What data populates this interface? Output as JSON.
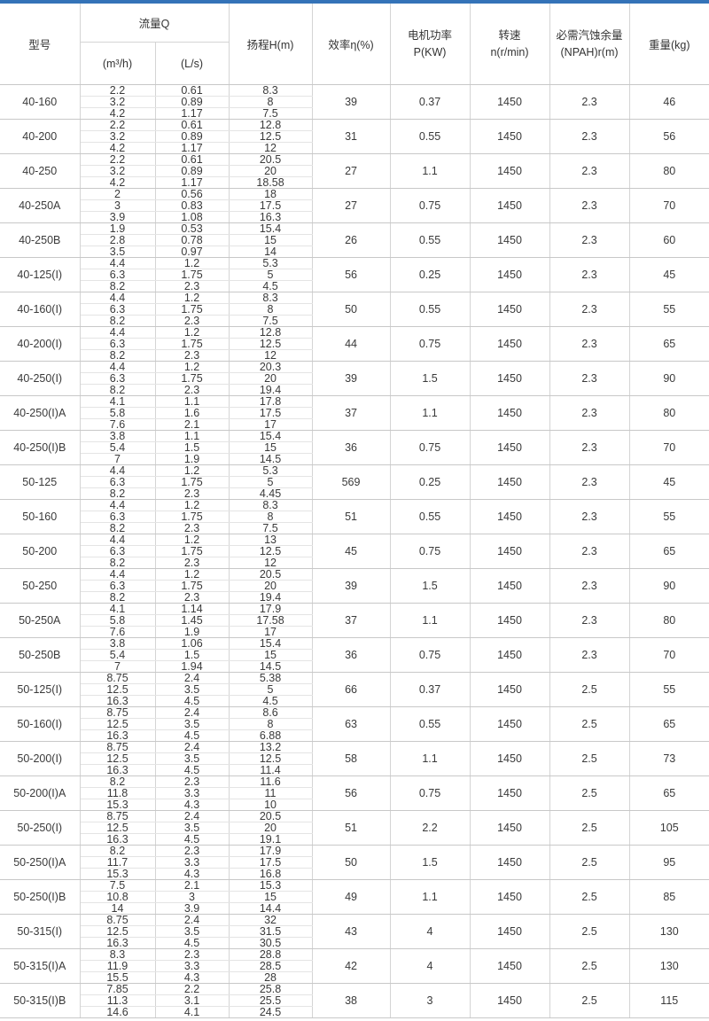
{
  "page": {
    "accent_bar_color": "#3473b8",
    "background_color": "#ffffff"
  },
  "table": {
    "headers": {
      "model": "型号",
      "flow_group": "流量Q",
      "flow_m3h": "(m³/h)",
      "flow_ls": "(L/s)",
      "head": "扬程H(m)",
      "efficiency": "效率η(%)",
      "power_line1": "电机功率",
      "power_line2": "P(KW)",
      "speed_line1": "转速",
      "speed_line2": "n(r/min)",
      "npsh_line1": "必需汽蚀余量",
      "npsh_line2": "(NPAH)r(m)",
      "weight": "重量(kg)"
    },
    "rows": [
      {
        "model": "40-160",
        "sub_rows": [
          [
            "2.2",
            "0.61",
            "8.3"
          ],
          [
            "3.2",
            "0.89",
            "8"
          ],
          [
            "4.2",
            "1.17",
            "7.5"
          ]
        ],
        "efficiency": "39",
        "power": "0.37",
        "speed": "1450",
        "npsh": "2.3",
        "weight": "46"
      },
      {
        "model": "40-200",
        "sub_rows": [
          [
            "2.2",
            "0.61",
            "12.8"
          ],
          [
            "3.2",
            "0.89",
            "12.5"
          ],
          [
            "4.2",
            "1.17",
            "12"
          ]
        ],
        "efficiency": "31",
        "power": "0.55",
        "speed": "1450",
        "npsh": "2.3",
        "weight": "56"
      },
      {
        "model": "40-250",
        "sub_rows": [
          [
            "2.2",
            "0.61",
            "20.5"
          ],
          [
            "3.2",
            "0.89",
            "20"
          ],
          [
            "4.2",
            "1.17",
            "18.58"
          ]
        ],
        "efficiency": "27",
        "power": "1.1",
        "speed": "1450",
        "npsh": "2.3",
        "weight": "80"
      },
      {
        "model": "40-250A",
        "sub_rows": [
          [
            "2",
            "0.56",
            "18"
          ],
          [
            "3",
            "0.83",
            "17.5"
          ],
          [
            "3.9",
            "1.08",
            "16.3"
          ]
        ],
        "efficiency": "27",
        "power": "0.75",
        "speed": "1450",
        "npsh": "2.3",
        "weight": "70"
      },
      {
        "model": "40-250B",
        "sub_rows": [
          [
            "1.9",
            "0.53",
            "15.4"
          ],
          [
            "2.8",
            "0.78",
            "15"
          ],
          [
            "3.5",
            "0.97",
            "14"
          ]
        ],
        "efficiency": "26",
        "power": "0.55",
        "speed": "1450",
        "npsh": "2.3",
        "weight": "60"
      },
      {
        "model": "40-125(I)",
        "sub_rows": [
          [
            "4.4",
            "1.2",
            "5.3"
          ],
          [
            "6.3",
            "1.75",
            "5"
          ],
          [
            "8.2",
            "2.3",
            "4.5"
          ]
        ],
        "efficiency": "56",
        "power": "0.25",
        "speed": "1450",
        "npsh": "2.3",
        "weight": "45"
      },
      {
        "model": "40-160(I)",
        "sub_rows": [
          [
            "4.4",
            "1.2",
            "8.3"
          ],
          [
            "6.3",
            "1.75",
            "8"
          ],
          [
            "8.2",
            "2.3",
            "7.5"
          ]
        ],
        "efficiency": "50",
        "power": "0.55",
        "speed": "1450",
        "npsh": "2.3",
        "weight": "55"
      },
      {
        "model": "40-200(I)",
        "sub_rows": [
          [
            "4.4",
            "1.2",
            "12.8"
          ],
          [
            "6.3",
            "1.75",
            "12.5"
          ],
          [
            "8.2",
            "2.3",
            "12"
          ]
        ],
        "efficiency": "44",
        "power": "0.75",
        "speed": "1450",
        "npsh": "2.3",
        "weight": "65"
      },
      {
        "model": "40-250(I)",
        "sub_rows": [
          [
            "4.4",
            "1.2",
            "20.3"
          ],
          [
            "6.3",
            "1.75",
            "20"
          ],
          [
            "8.2",
            "2.3",
            "19.4"
          ]
        ],
        "efficiency": "39",
        "power": "1.5",
        "speed": "1450",
        "npsh": "2.3",
        "weight": "90"
      },
      {
        "model": "40-250(I)A",
        "sub_rows": [
          [
            "4.1",
            "1.1",
            "17.8"
          ],
          [
            "5.8",
            "1.6",
            "17.5"
          ],
          [
            "7.6",
            "2.1",
            "17"
          ]
        ],
        "efficiency": "37",
        "power": "1.1",
        "speed": "1450",
        "npsh": "2.3",
        "weight": "80"
      },
      {
        "model": "40-250(I)B",
        "sub_rows": [
          [
            "3.8",
            "1.1",
            "15.4"
          ],
          [
            "5.4",
            "1.5",
            "15"
          ],
          [
            "7",
            "1.9",
            "14.5"
          ]
        ],
        "efficiency": "36",
        "power": "0.75",
        "speed": "1450",
        "npsh": "2.3",
        "weight": "70"
      },
      {
        "model": "50-125",
        "sub_rows": [
          [
            "4.4",
            "1.2",
            "5.3"
          ],
          [
            "6.3",
            "1.75",
            "5"
          ],
          [
            "8.2",
            "2.3",
            "4.45"
          ]
        ],
        "efficiency": "569",
        "power": "0.25",
        "speed": "1450",
        "npsh": "2.3",
        "weight": "45"
      },
      {
        "model": "50-160",
        "sub_rows": [
          [
            "4.4",
            "1.2",
            "8.3"
          ],
          [
            "6.3",
            "1.75",
            "8"
          ],
          [
            "8.2",
            "2.3",
            "7.5"
          ]
        ],
        "efficiency": "51",
        "power": "0.55",
        "speed": "1450",
        "npsh": "2.3",
        "weight": "55"
      },
      {
        "model": "50-200",
        "sub_rows": [
          [
            "4.4",
            "1.2",
            "13"
          ],
          [
            "6.3",
            "1.75",
            "12.5"
          ],
          [
            "8.2",
            "2.3",
            "12"
          ]
        ],
        "efficiency": "45",
        "power": "0.75",
        "speed": "1450",
        "npsh": "2.3",
        "weight": "65"
      },
      {
        "model": "50-250",
        "sub_rows": [
          [
            "4.4",
            "1.2",
            "20.5"
          ],
          [
            "6.3",
            "1.75",
            "20"
          ],
          [
            "8.2",
            "2.3",
            "19.4"
          ]
        ],
        "efficiency": "39",
        "power": "1.5",
        "speed": "1450",
        "npsh": "2.3",
        "weight": "90"
      },
      {
        "model": "50-250A",
        "sub_rows": [
          [
            "4.1",
            "1.14",
            "17.9"
          ],
          [
            "5.8",
            "1.45",
            "17.58"
          ],
          [
            "7.6",
            "1.9",
            "17"
          ]
        ],
        "efficiency": "37",
        "power": "1.1",
        "speed": "1450",
        "npsh": "2.3",
        "weight": "80"
      },
      {
        "model": "50-250B",
        "sub_rows": [
          [
            "3.8",
            "1.06",
            "15.4"
          ],
          [
            "5.4",
            "1.5",
            "15"
          ],
          [
            "7",
            "1.94",
            "14.5"
          ]
        ],
        "efficiency": "36",
        "power": "0.75",
        "speed": "1450",
        "npsh": "2.3",
        "weight": "70"
      },
      {
        "model": "50-125(I)",
        "sub_rows": [
          [
            "8.75",
            "2.4",
            "5.38"
          ],
          [
            "12.5",
            "3.5",
            "5"
          ],
          [
            "16.3",
            "4.5",
            "4.5"
          ]
        ],
        "efficiency": "66",
        "power": "0.37",
        "speed": "1450",
        "npsh": "2.5",
        "weight": "55"
      },
      {
        "model": "50-160(I)",
        "sub_rows": [
          [
            "8.75",
            "2.4",
            "8.6"
          ],
          [
            "12.5",
            "3.5",
            "8"
          ],
          [
            "16.3",
            "4.5",
            "6.88"
          ]
        ],
        "efficiency": "63",
        "power": "0.55",
        "speed": "1450",
        "npsh": "2.5",
        "weight": "65"
      },
      {
        "model": "50-200(I)",
        "sub_rows": [
          [
            "8.75",
            "2.4",
            "13.2"
          ],
          [
            "12.5",
            "3.5",
            "12.5"
          ],
          [
            "16.3",
            "4.5",
            "11.4"
          ]
        ],
        "efficiency": "58",
        "power": "1.1",
        "speed": "1450",
        "npsh": "2.5",
        "weight": "73"
      },
      {
        "model": "50-200(I)A",
        "sub_rows": [
          [
            "8.2",
            "2.3",
            "11.6"
          ],
          [
            "11.8",
            "3.3",
            "11"
          ],
          [
            "15.3",
            "4.3",
            "10"
          ]
        ],
        "efficiency": "56",
        "power": "0.75",
        "speed": "1450",
        "npsh": "2.5",
        "weight": "65"
      },
      {
        "model": "50-250(I)",
        "sub_rows": [
          [
            "8.75",
            "2.4",
            "20.5"
          ],
          [
            "12.5",
            "3.5",
            "20"
          ],
          [
            "16.3",
            "4.5",
            "19.1"
          ]
        ],
        "efficiency": "51",
        "power": "2.2",
        "speed": "1450",
        "npsh": "2.5",
        "weight": "105"
      },
      {
        "model": "50-250(I)A",
        "sub_rows": [
          [
            "8.2",
            "2.3",
            "17.9"
          ],
          [
            "11.7",
            "3.3",
            "17.5"
          ],
          [
            "15.3",
            "4.3",
            "16.8"
          ]
        ],
        "efficiency": "50",
        "power": "1.5",
        "speed": "1450",
        "npsh": "2.5",
        "weight": "95"
      },
      {
        "model": "50-250(I)B",
        "sub_rows": [
          [
            "7.5",
            "2.1",
            "15.3"
          ],
          [
            "10.8",
            "3",
            "15"
          ],
          [
            "14",
            "3.9",
            "14.4"
          ]
        ],
        "efficiency": "49",
        "power": "1.1",
        "speed": "1450",
        "npsh": "2.5",
        "weight": "85"
      },
      {
        "model": "50-315(I)",
        "sub_rows": [
          [
            "8.75",
            "2.4",
            "32"
          ],
          [
            "12.5",
            "3.5",
            "31.5"
          ],
          [
            "16.3",
            "4.5",
            "30.5"
          ]
        ],
        "efficiency": "43",
        "power": "4",
        "speed": "1450",
        "npsh": "2.5",
        "weight": "130"
      },
      {
        "model": "50-315(I)A",
        "sub_rows": [
          [
            "8.3",
            "2.3",
            "28.8"
          ],
          [
            "11.9",
            "3.3",
            "28.5"
          ],
          [
            "15.5",
            "4.3",
            "28"
          ]
        ],
        "efficiency": "42",
        "power": "4",
        "speed": "1450",
        "npsh": "2.5",
        "weight": "130"
      },
      {
        "model": "50-315(I)B",
        "sub_rows": [
          [
            "7.85",
            "2.2",
            "25.8"
          ],
          [
            "11.3",
            "3.1",
            "25.5"
          ],
          [
            "14.6",
            "4.1",
            "24.5"
          ]
        ],
        "efficiency": "38",
        "power": "3",
        "speed": "1450",
        "npsh": "2.5",
        "weight": "115"
      }
    ]
  }
}
